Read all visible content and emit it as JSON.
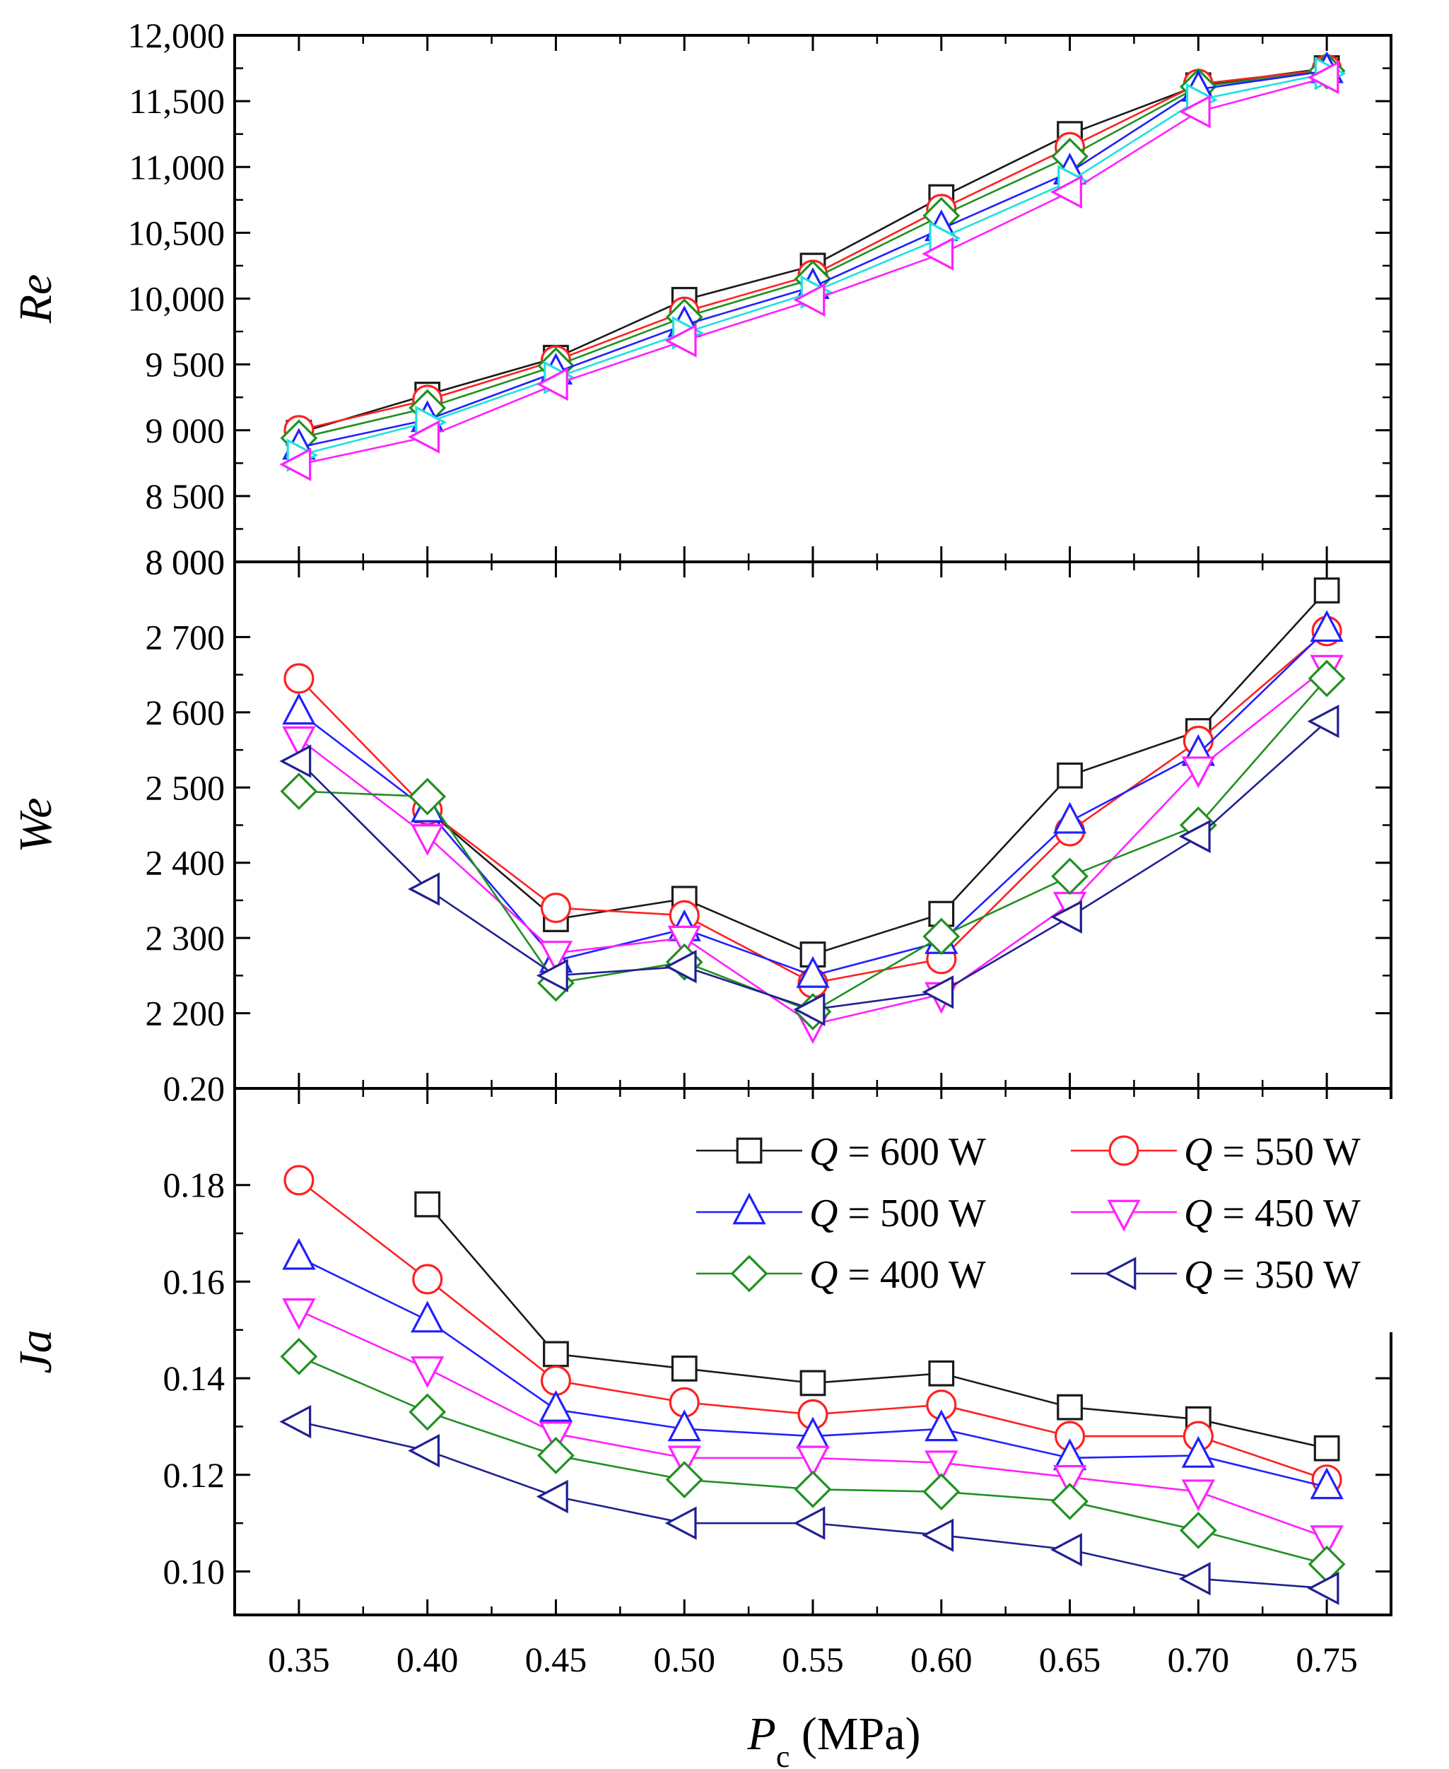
{
  "figure": {
    "xlabel_symbol": "P",
    "xlabel_subscript": "c",
    "xlabel_unit": " (MPa)",
    "x_tick_labels": [
      "0.35",
      "0.40",
      "0.45",
      "0.50",
      "0.55",
      "0.60",
      "0.65",
      "0.70",
      "0.75"
    ]
  },
  "legend": {
    "entries": [
      {
        "series": "600",
        "text": " = 600 W"
      },
      {
        "series": "550",
        "text": " = 550 W"
      },
      {
        "series": "500",
        "text": " = 500 W"
      },
      {
        "series": "450",
        "text": " = 450 W"
      },
      {
        "series": "400",
        "text": " = 400 W"
      },
      {
        "series": "350",
        "text": " = 350 W"
      }
    ],
    "symbol": "Q"
  },
  "colors": {
    "600": "#1a1a1a",
    "550": "#ff2020",
    "500": "#2020ff",
    "450": "#ff20ff",
    "400": "#209020",
    "350": "#202090",
    "cyan": "#20e0e0"
  },
  "chart_data": [
    {
      "type": "line",
      "panel": "top",
      "ylabel": "Re",
      "x": [
        0.35,
        0.4,
        0.45,
        0.5,
        0.55,
        0.6,
        0.65,
        0.7,
        0.75
      ],
      "ylim": [
        8000,
        12000
      ],
      "yticks": [
        8000,
        8500,
        9000,
        9500,
        10000,
        10500,
        11000,
        11500,
        12000
      ],
      "ytick_labels": [
        "8 000",
        "8 500",
        "9 000",
        "9 500",
        "10,000",
        "10,500",
        "11,000",
        "11,500",
        "12,000"
      ],
      "series": [
        {
          "key": "600",
          "marker": "square",
          "values": [
            8980,
            9270,
            9550,
            9990,
            10250,
            10770,
            11250,
            11620,
            11750
          ]
        },
        {
          "key": "550",
          "marker": "circle",
          "values": [
            9000,
            9230,
            9530,
            9900,
            10180,
            10680,
            11150,
            11630,
            11740
          ]
        },
        {
          "key": "400",
          "marker": "diamond",
          "values": [
            8940,
            9170,
            9490,
            9860,
            10150,
            10630,
            11080,
            11610,
            11730
          ]
        },
        {
          "key": "500",
          "marker": "tri-up",
          "values": [
            8870,
            9080,
            9440,
            9800,
            10090,
            10530,
            10960,
            11590,
            11730
          ]
        },
        {
          "key": "cyan",
          "marker": "tri-right",
          "values": [
            8810,
            9060,
            9400,
            9740,
            10050,
            10460,
            10890,
            11510,
            11710
          ]
        },
        {
          "key": "450",
          "marker": "tri-left",
          "values": [
            8740,
            8950,
            9350,
            9680,
            9990,
            10340,
            10810,
            11420,
            11680
          ]
        }
      ]
    },
    {
      "type": "line",
      "panel": "middle",
      "ylabel": "We",
      "x": [
        0.35,
        0.4,
        0.45,
        0.5,
        0.55,
        0.6,
        0.65,
        0.7,
        0.75
      ],
      "ylim": [
        2100,
        2800
      ],
      "yticks": [
        2200,
        2300,
        2400,
        2500,
        2600,
        2700
      ],
      "ytick_labels": [
        "2 200",
        "2 300",
        "2 400",
        "2 500",
        "2 600",
        "2 700"
      ],
      "top_label": "8 000",
      "series": [
        {
          "key": "600",
          "marker": "square",
          "values": [
            null,
            2470,
            2325,
            2352,
            2278,
            2332,
            2516,
            2575,
            2762
          ]
        },
        {
          "key": "550",
          "marker": "circle",
          "values": [
            2645,
            2470,
            2340,
            2330,
            2240,
            2272,
            2442,
            2562,
            2708
          ]
        },
        {
          "key": "500",
          "marker": "tri-up",
          "values": [
            2600,
            2470,
            2270,
            2312,
            2250,
            2295,
            2455,
            2545,
            2710
          ]
        },
        {
          "key": "450",
          "marker": "tri-down",
          "values": [
            2565,
            2435,
            2280,
            2300,
            2185,
            2225,
            2345,
            2525,
            2660
          ]
        },
        {
          "key": "400",
          "marker": "diamond",
          "values": [
            2495,
            2488,
            2240,
            2268,
            2202,
            2302,
            2382,
            2450,
            2645
          ]
        },
        {
          "key": "350",
          "marker": "tri-left",
          "values": [
            2535,
            2365,
            2250,
            2262,
            2205,
            2228,
            2328,
            2435,
            2588
          ]
        }
      ]
    },
    {
      "type": "line",
      "panel": "bottom",
      "ylabel": "Ja",
      "x": [
        0.35,
        0.4,
        0.45,
        0.5,
        0.55,
        0.6,
        0.65,
        0.7,
        0.75
      ],
      "ylim": [
        0.091,
        0.2
      ],
      "yticks": [
        0.1,
        0.12,
        0.14,
        0.16,
        0.18
      ],
      "ytick_labels": [
        "0.10",
        "0.12",
        "0.14",
        "0.16",
        "0.18"
      ],
      "top_label": "0.20",
      "series": [
        {
          "key": "600",
          "marker": "square",
          "values": [
            null,
            0.176,
            0.145,
            0.142,
            0.139,
            0.141,
            0.134,
            0.1315,
            0.1255
          ]
        },
        {
          "key": "550",
          "marker": "circle",
          "values": [
            0.181,
            0.1605,
            0.1395,
            0.135,
            0.1325,
            0.1345,
            0.128,
            0.128,
            0.119
          ]
        },
        {
          "key": "500",
          "marker": "tri-up",
          "values": [
            0.165,
            0.152,
            0.1335,
            0.1295,
            0.128,
            0.1295,
            0.1235,
            0.124,
            0.1175
          ]
        },
        {
          "key": "450",
          "marker": "tri-down",
          "values": [
            0.154,
            0.142,
            0.1285,
            0.1235,
            0.1235,
            0.1225,
            0.1195,
            0.1165,
            0.107
          ]
        },
        {
          "key": "400",
          "marker": "diamond",
          "values": [
            0.1445,
            0.133,
            0.124,
            0.119,
            0.117,
            0.1165,
            0.1145,
            0.1085,
            0.1015
          ]
        },
        {
          "key": "350",
          "marker": "tri-left",
          "values": [
            0.131,
            0.125,
            0.1155,
            0.11,
            0.11,
            0.1075,
            0.1045,
            0.0985,
            0.0965
          ]
        }
      ]
    }
  ]
}
